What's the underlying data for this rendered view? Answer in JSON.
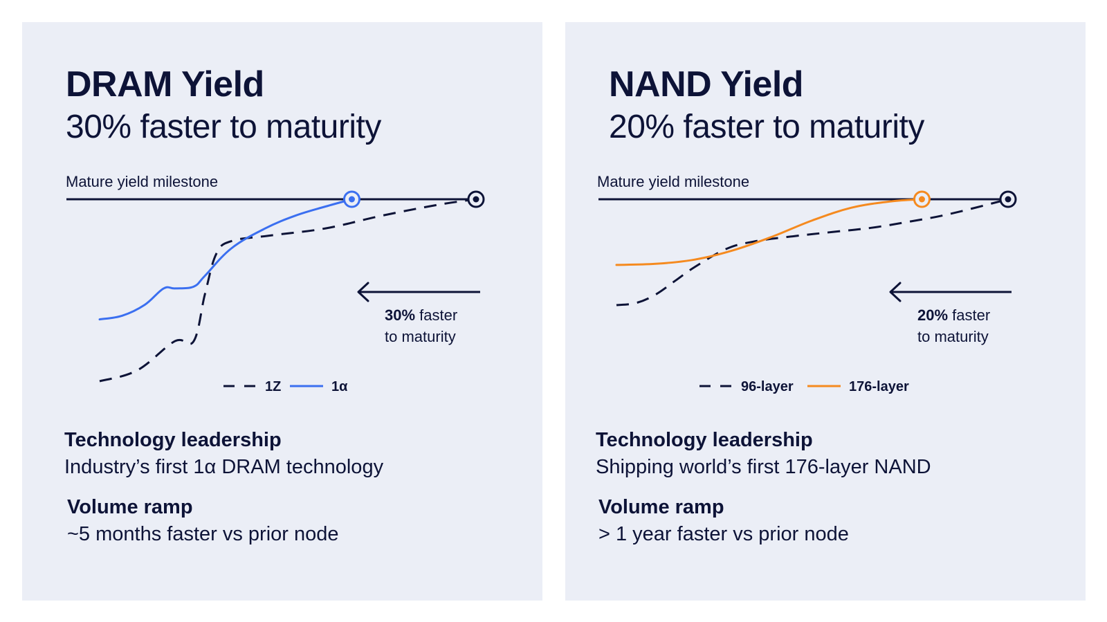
{
  "panels": [
    {
      "title": "DRAM Yield",
      "subtitle": "30% faster to maturity",
      "technology_heading": "Technology leadership",
      "technology_text": "Industry’s first 1α DRAM technology",
      "volume_heading": "Volume ramp",
      "volume_text": "~5 months faster vs prior node"
    },
    {
      "title": "NAND Yield",
      "subtitle": "20% faster to maturity",
      "technology_heading": "Technology leadership",
      "technology_text": "Shipping world’s first 176-layer NAND",
      "volume_heading": "Volume ramp",
      "volume_text": "> 1 year faster vs prior node"
    }
  ],
  "chart_data": [
    {
      "type": "line",
      "milestone_label": "Mature yield milestone",
      "callout_bold": "30%",
      "callout_rest": "faster",
      "callout_line2": "to maturity",
      "accent_color": "#3b6ff0",
      "series": [
        {
          "name": "1Z",
          "style": "dashed",
          "color": "#0d1337",
          "x": [
            0.0,
            0.1,
            0.2,
            0.25,
            0.28,
            0.31,
            0.35,
            0.45,
            0.6,
            0.75,
            0.9,
            1.0
          ],
          "y": [
            0.0,
            0.06,
            0.22,
            0.22,
            0.48,
            0.7,
            0.77,
            0.8,
            0.84,
            0.91,
            0.97,
            1.0
          ]
        },
        {
          "name": "1α",
          "style": "solid",
          "color": "#3b6ff0",
          "x": [
            0.0,
            0.06,
            0.12,
            0.17,
            0.2,
            0.25,
            0.28,
            0.35,
            0.44,
            0.52,
            0.6,
            0.67
          ],
          "y": [
            0.34,
            0.36,
            0.42,
            0.51,
            0.51,
            0.52,
            0.58,
            0.73,
            0.84,
            0.91,
            0.96,
            1.0
          ]
        }
      ]
    },
    {
      "type": "line",
      "milestone_label": "Mature yield milestone",
      "callout_bold": "20%",
      "callout_rest": "faster",
      "callout_line2": "to maturity",
      "accent_color": "#f58a1f",
      "series": [
        {
          "name": "96-layer",
          "style": "dashed",
          "color": "#0d1337",
          "x": [
            0.0,
            0.05,
            0.1,
            0.15,
            0.2,
            0.28,
            0.35,
            0.45,
            0.55,
            0.65,
            0.75,
            0.85,
            1.0
          ],
          "y": [
            0.0,
            0.02,
            0.1,
            0.23,
            0.36,
            0.53,
            0.6,
            0.65,
            0.69,
            0.73,
            0.79,
            0.86,
            1.0
          ]
        },
        {
          "name": "176-layer",
          "style": "solid",
          "color": "#f58a1f",
          "x": [
            0.0,
            0.1,
            0.2,
            0.3,
            0.4,
            0.5,
            0.6,
            0.7,
            0.78
          ],
          "y": [
            0.38,
            0.39,
            0.43,
            0.52,
            0.65,
            0.8,
            0.92,
            0.98,
            1.0
          ]
        }
      ]
    }
  ]
}
